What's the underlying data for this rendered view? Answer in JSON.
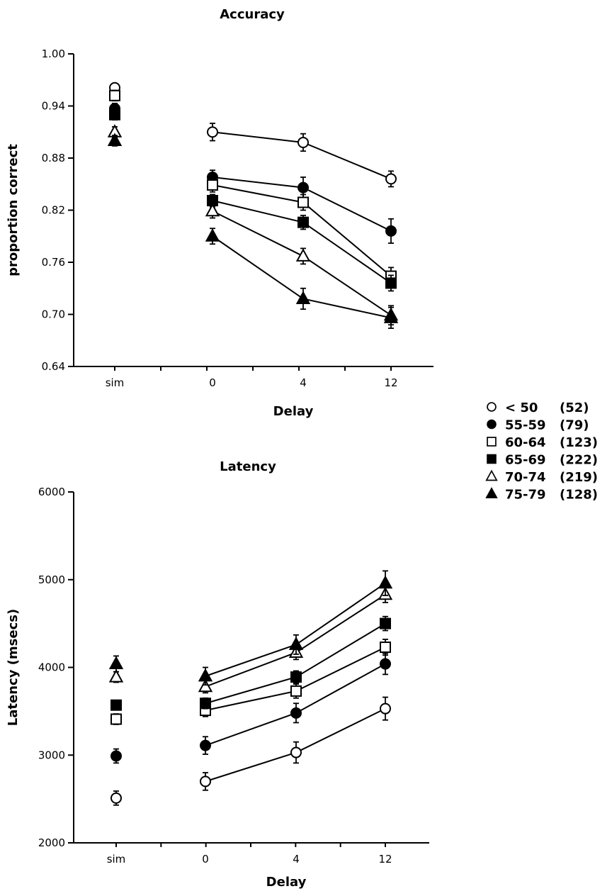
{
  "chart_data": [
    {
      "type": "line",
      "title": "Accuracy",
      "xlabel": "Delay",
      "ylabel": "proportion correct",
      "categories": [
        "sim",
        "0",
        "4",
        "12"
      ],
      "connect_from_index": 1,
      "ylim": [
        0.64,
        1.0
      ],
      "yticks": [
        "0.64",
        "0.70",
        "0.76",
        "0.82",
        "0.88",
        "0.94",
        "1.00"
      ],
      "grid": false,
      "series": [
        {
          "name": "< 50",
          "marker": "open-circle",
          "values": [
            0.961,
            0.91,
            0.898,
            0.856
          ],
          "errors": [
            0.005,
            0.01,
            0.01,
            0.009
          ]
        },
        {
          "name": "55-59",
          "marker": "filled-circle",
          "values": [
            0.937,
            0.858,
            0.846,
            0.796
          ],
          "errors": [
            0.006,
            0.008,
            0.012,
            0.014
          ]
        },
        {
          "name": "60-64",
          "marker": "open-square",
          "values": [
            0.952,
            0.849,
            0.829,
            0.744
          ],
          "errors": [
            0.006,
            0.008,
            0.009,
            0.01
          ]
        },
        {
          "name": "65-69",
          "marker": "filled-square",
          "values": [
            0.93,
            0.831,
            0.806,
            0.736
          ],
          "errors": [
            0.006,
            0.007,
            0.008,
            0.009
          ]
        },
        {
          "name": "70-74",
          "marker": "open-triangle",
          "values": [
            0.91,
            0.819,
            0.767,
            0.699
          ],
          "errors": [
            0.006,
            0.008,
            0.009,
            0.011
          ]
        },
        {
          "name": "75-79",
          "marker": "filled-triangle",
          "values": [
            0.9,
            0.79,
            0.718,
            0.696
          ],
          "errors": [
            0.006,
            0.009,
            0.012,
            0.012
          ]
        }
      ]
    },
    {
      "type": "line",
      "title": "Latency",
      "xlabel": "Delay",
      "ylabel": "Latency (msecs)",
      "categories": [
        "sim",
        "0",
        "4",
        "12"
      ],
      "connect_from_index": 1,
      "ylim": [
        2000,
        6000
      ],
      "yticks": [
        "2000",
        "3000",
        "4000",
        "5000",
        "6000"
      ],
      "grid": false,
      "series": [
        {
          "name": "< 50",
          "marker": "open-circle",
          "values": [
            2510,
            2700,
            3030,
            3530
          ],
          "errors": [
            80,
            100,
            120,
            130
          ]
        },
        {
          "name": "55-59",
          "marker": "filled-circle",
          "values": [
            2990,
            3110,
            3480,
            4040
          ],
          "errors": [
            80,
            100,
            110,
            120
          ]
        },
        {
          "name": "60-64",
          "marker": "open-square",
          "values": [
            3410,
            3510,
            3730,
            4230
          ],
          "errors": [
            60,
            70,
            80,
            90
          ]
        },
        {
          "name": "65-69",
          "marker": "filled-square",
          "values": [
            3570,
            3590,
            3890,
            4500
          ],
          "errors": [
            50,
            60,
            70,
            80
          ]
        },
        {
          "name": "70-74",
          "marker": "open-triangle",
          "values": [
            3890,
            3780,
            4170,
            4830
          ],
          "errors": [
            60,
            70,
            80,
            90
          ]
        },
        {
          "name": "75-79",
          "marker": "filled-triangle",
          "values": [
            4040,
            3900,
            4260,
            4960
          ],
          "errors": [
            90,
            100,
            110,
            140
          ]
        }
      ]
    }
  ],
  "legend": {
    "placement": "right",
    "entries": [
      {
        "marker": "open-circle",
        "label": "< 50",
        "count": "(52)"
      },
      {
        "marker": "filled-circle",
        "label": "55-59",
        "count": "(79)"
      },
      {
        "marker": "open-square",
        "label": "60-64",
        "count": "(123)"
      },
      {
        "marker": "filled-square",
        "label": "65-69",
        "count": "(222)"
      },
      {
        "marker": "open-triangle",
        "label": "70-74",
        "count": "(219)"
      },
      {
        "marker": "filled-triangle",
        "label": "75-79",
        "count": "(128)"
      }
    ]
  }
}
